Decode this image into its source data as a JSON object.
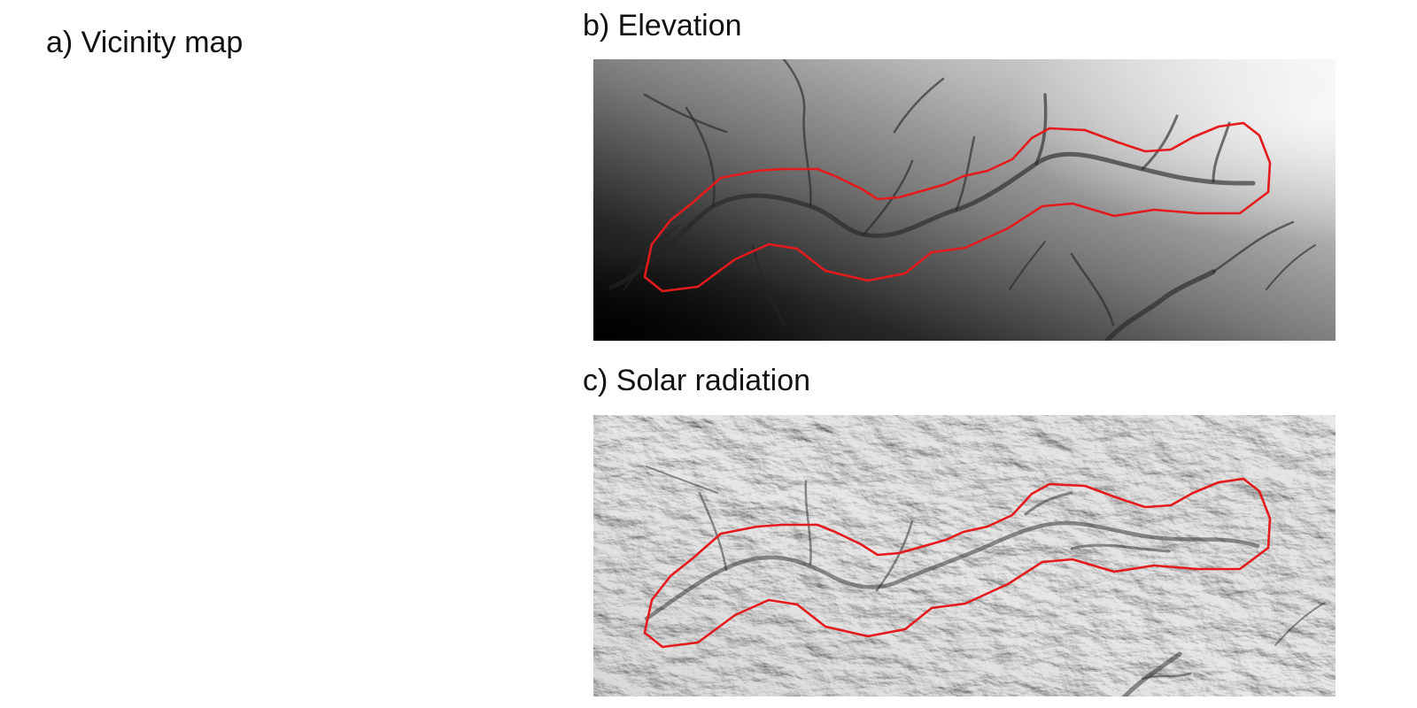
{
  "figure": {
    "panel_a": {
      "title": "a) Vicinity map"
    },
    "panel_b": {
      "title": "b) Elevation",
      "raster": "grayscale-elevation-shading",
      "outline_color": "#e41a1c"
    },
    "panel_c": {
      "title": "c) Solar radiation",
      "raster": "grayscale-hillshade-solar-radiation",
      "outline_color": "#e41a1c"
    }
  }
}
